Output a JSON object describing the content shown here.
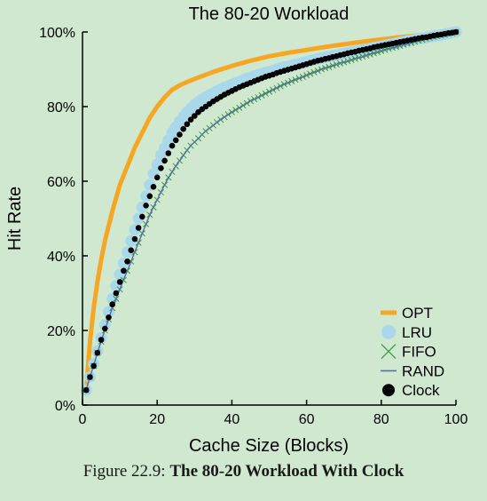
{
  "caption": {
    "label": "Figure 22.9:",
    "title": "The 80-20 Workload With Clock"
  },
  "chart_data": {
    "type": "line",
    "title": "The 80-20 Workload",
    "xlabel": "Cache Size (Blocks)",
    "ylabel": "Hit Rate",
    "xlim": [
      0,
      100
    ],
    "ylim": [
      0,
      100
    ],
    "xticks": [
      0,
      20,
      40,
      60,
      80,
      100
    ],
    "xtick_labels": [
      "0",
      "20",
      "40",
      "60",
      "80",
      "100"
    ],
    "yticks": [
      0,
      20,
      40,
      60,
      80,
      100
    ],
    "ytick_labels": [
      "0%",
      "20%",
      "40%",
      "60%",
      "80%",
      "100%"
    ],
    "grid": false,
    "legend_position": "bottom-right",
    "series": [
      {
        "name": "OPT",
        "style": "line",
        "color": "#f5a623",
        "x": [
          1,
          2,
          3,
          4,
          5,
          6,
          8,
          10,
          12,
          14,
          16,
          18,
          20,
          22,
          24,
          26,
          28,
          30,
          35,
          40,
          45,
          50,
          55,
          60,
          65,
          70,
          75,
          80,
          85,
          90,
          95,
          100
        ],
        "y": [
          4,
          17,
          26,
          33,
          39,
          44,
          52,
          59,
          64,
          69,
          73,
          77,
          80,
          82.5,
          84.5,
          85.7,
          86.6,
          87.4,
          89.3,
          90.9,
          92.3,
          93.5,
          94.4,
          95.2,
          96,
          96.7,
          97.4,
          98,
          98.6,
          99.1,
          99.5,
          100
        ]
      },
      {
        "name": "LRU",
        "style": "markers",
        "marker": "circle-large",
        "color": "#a8d8ea",
        "x": [
          1,
          2,
          3,
          4,
          5,
          6,
          7,
          8,
          9,
          10,
          11,
          12,
          13,
          14,
          15,
          16,
          17,
          18,
          19,
          20,
          21,
          22,
          23,
          24,
          25,
          26,
          27,
          28,
          29,
          30,
          31,
          32,
          33,
          34,
          35,
          36,
          37,
          38,
          39,
          40,
          41,
          42,
          43,
          44,
          45,
          46,
          47,
          48,
          49,
          50,
          51,
          52,
          53,
          54,
          55,
          56,
          57,
          58,
          59,
          60,
          61,
          62,
          63,
          64,
          65,
          66,
          67,
          68,
          69,
          70,
          71,
          72,
          73,
          74,
          75,
          76,
          77,
          78,
          79,
          80,
          81,
          82,
          83,
          84,
          85,
          86,
          87,
          88,
          89,
          90,
          91,
          92,
          93,
          94,
          95,
          96,
          97,
          98,
          99,
          100
        ],
        "y": [
          4,
          7.5,
          11,
          14.5,
          18,
          21.5,
          25,
          28.5,
          32,
          35,
          38,
          41,
          44,
          47,
          50,
          53,
          56,
          59,
          62,
          64.5,
          67,
          69,
          71,
          73,
          74.5,
          76,
          77.3,
          78.5,
          79.5,
          80.5,
          81.2,
          81.9,
          82.5,
          83.1,
          83.6,
          84.1,
          84.6,
          85.1,
          85.5,
          85.9,
          86.3,
          86.7,
          87.1,
          87.5,
          87.9,
          88.2,
          88.5,
          88.8,
          89.1,
          89.4,
          89.7,
          90,
          90.3,
          90.6,
          90.8,
          91,
          91.3,
          91.5,
          91.8,
          92,
          92.3,
          92.5,
          92.8,
          93,
          93.2,
          93.4,
          93.6,
          93.8,
          94,
          94.2,
          94.4,
          94.6,
          94.8,
          95,
          95.2,
          95.4,
          95.6,
          95.8,
          96,
          96.2,
          96.4,
          96.6,
          96.8,
          97,
          97.2,
          97.4,
          97.6,
          97.8,
          98,
          98.2,
          98.3,
          98.5,
          98.7,
          98.9,
          99,
          99.2,
          99.4,
          99.6,
          99.8,
          100
        ]
      },
      {
        "name": "FIFO",
        "style": "markers",
        "marker": "x",
        "color": "#3a9a3a",
        "x": [
          1,
          2,
          3,
          4,
          5,
          6,
          7,
          8,
          9,
          10,
          11,
          12,
          13,
          14,
          15,
          16,
          17,
          18,
          19,
          20,
          21,
          22,
          23,
          24,
          25,
          26,
          27,
          28,
          29,
          30,
          31,
          32,
          33,
          34,
          35,
          36,
          37,
          38,
          39,
          40,
          41,
          42,
          43,
          44,
          45,
          46,
          47,
          48,
          49,
          50,
          51,
          52,
          53,
          54,
          55,
          56,
          57,
          58,
          59,
          60,
          61,
          62,
          63,
          64,
          65,
          66,
          67,
          68,
          69,
          70,
          71,
          72,
          73,
          74,
          75,
          76,
          77,
          78,
          79,
          80,
          81,
          82,
          83,
          84,
          85,
          86,
          87,
          88,
          89,
          90,
          91,
          92,
          93,
          94,
          95,
          96,
          97,
          98,
          99,
          100
        ],
        "y": [
          4,
          7.5,
          10.5,
          14,
          17,
          20,
          23,
          26,
          28.5,
          31,
          33.5,
          36,
          38.5,
          41,
          43.5,
          46,
          48.5,
          51,
          53,
          55,
          57,
          59,
          61,
          62.5,
          64,
          65.5,
          67,
          68.3,
          69.5,
          70.5,
          71.5,
          72.5,
          73.4,
          74.2,
          75,
          75.8,
          76.5,
          77.2,
          77.9,
          78.5,
          79.1,
          79.7,
          80.3,
          80.9,
          81.5,
          82,
          82.5,
          83,
          83.5,
          84,
          84.5,
          85,
          85.5,
          86,
          86.4,
          86.8,
          87.2,
          87.6,
          88,
          88.4,
          88.8,
          89.2,
          89.6,
          90,
          90.3,
          90.6,
          91,
          91.3,
          91.6,
          91.9,
          92.2,
          92.5,
          92.8,
          93.1,
          93.4,
          93.7,
          94,
          94.3,
          94.6,
          94.9,
          95.2,
          95.5,
          95.8,
          96,
          96.3,
          96.6,
          96.9,
          97.1,
          97.4,
          97.7,
          97.9,
          98.2,
          98.4,
          98.7,
          98.9,
          99.1,
          99.3,
          99.5,
          99.7,
          100
        ]
      },
      {
        "name": "RAND",
        "style": "line",
        "color": "#5a6bb0",
        "x": [
          1,
          2,
          3,
          4,
          5,
          6,
          7,
          8,
          9,
          10,
          11,
          12,
          13,
          14,
          15,
          16,
          17,
          18,
          19,
          20,
          21,
          22,
          23,
          24,
          25,
          26,
          27,
          28,
          29,
          30,
          31,
          32,
          33,
          34,
          35,
          36,
          37,
          38,
          39,
          40,
          41,
          42,
          43,
          44,
          45,
          46,
          47,
          48,
          49,
          50,
          51,
          52,
          53,
          54,
          55,
          56,
          57,
          58,
          59,
          60,
          61,
          62,
          63,
          64,
          65,
          66,
          67,
          68,
          69,
          70,
          71,
          72,
          73,
          74,
          75,
          76,
          77,
          78,
          79,
          80,
          81,
          82,
          83,
          84,
          85,
          86,
          87,
          88,
          89,
          90,
          91,
          92,
          93,
          94,
          95,
          96,
          97,
          98,
          99,
          100
        ],
        "y": [
          4,
          7.6,
          10.6,
          14.1,
          17,
          20.1,
          23,
          26.1,
          28.4,
          31,
          33.6,
          36,
          38.4,
          41.1,
          43.5,
          46,
          48.4,
          51,
          53.1,
          55,
          57.1,
          59,
          60.9,
          62.5,
          64.1,
          65.5,
          66.9,
          68.3,
          69.6,
          70.5,
          71.4,
          72.5,
          73.5,
          74.2,
          74.9,
          75.8,
          76.6,
          77.2,
          77.8,
          78.5,
          79.2,
          79.7,
          80.2,
          80.9,
          81.6,
          82,
          82.4,
          83,
          83.6,
          84,
          84.4,
          85,
          85.6,
          86,
          86.3,
          86.8,
          87.3,
          87.6,
          87.9,
          88.4,
          88.9,
          89.2,
          89.5,
          90,
          90.4,
          90.6,
          90.9,
          91.3,
          91.7,
          91.9,
          92.1,
          92.5,
          92.9,
          93.1,
          93.3,
          93.7,
          94.1,
          94.3,
          94.5,
          94.9,
          95.3,
          95.5,
          95.7,
          96,
          96.4,
          96.6,
          96.8,
          97.1,
          97.5,
          97.7,
          97.8,
          98.2,
          98.5,
          98.7,
          98.8,
          99.1,
          99.4,
          99.5,
          99.7,
          100
        ]
      },
      {
        "name": "Clock",
        "style": "markers",
        "marker": "circle",
        "color": "#000000",
        "x": [
          1,
          2,
          3,
          4,
          5,
          6,
          7,
          8,
          9,
          10,
          11,
          12,
          13,
          14,
          15,
          16,
          17,
          18,
          19,
          20,
          21,
          22,
          23,
          24,
          25,
          26,
          27,
          28,
          29,
          30,
          31,
          32,
          33,
          34,
          35,
          36,
          37,
          38,
          39,
          40,
          41,
          42,
          43,
          44,
          45,
          46,
          47,
          48,
          49,
          50,
          51,
          52,
          53,
          54,
          55,
          56,
          57,
          58,
          59,
          60,
          61,
          62,
          63,
          64,
          65,
          66,
          67,
          68,
          69,
          70,
          71,
          72,
          73,
          74,
          75,
          76,
          77,
          78,
          79,
          80,
          81,
          82,
          83,
          84,
          85,
          86,
          87,
          88,
          89,
          90,
          91,
          92,
          93,
          94,
          95,
          96,
          97,
          98,
          99,
          100
        ],
        "y": [
          4,
          7.5,
          10.5,
          14,
          17.5,
          20.5,
          23.5,
          27,
          30,
          33,
          36,
          38.5,
          41.5,
          44.5,
          47.5,
          50.5,
          53.5,
          56,
          58.5,
          61,
          63.5,
          65.5,
          67.5,
          69.5,
          71,
          72.5,
          74,
          75.3,
          76.5,
          77.5,
          78.5,
          79.3,
          80,
          80.7,
          81.4,
          82,
          82.6,
          83.2,
          83.7,
          84.2,
          84.7,
          85.2,
          85.6,
          86,
          86.4,
          86.8,
          87.2,
          87.6,
          88,
          88.3,
          88.6,
          89,
          89.3,
          89.6,
          89.9,
          90.2,
          90.5,
          90.8,
          91.1,
          91.4,
          91.7,
          92,
          92.3,
          92.5,
          92.8,
          93,
          93.3,
          93.5,
          93.8,
          94,
          94.3,
          94.5,
          94.7,
          95,
          95.2,
          95.4,
          95.6,
          95.9,
          96.1,
          96.3,
          96.5,
          96.7,
          96.9,
          97.1,
          97.3,
          97.5,
          97.7,
          97.9,
          98.1,
          98.3,
          98.5,
          98.6,
          98.8,
          99,
          99.2,
          99.3,
          99.5,
          99.7,
          99.8,
          100
        ]
      }
    ]
  }
}
